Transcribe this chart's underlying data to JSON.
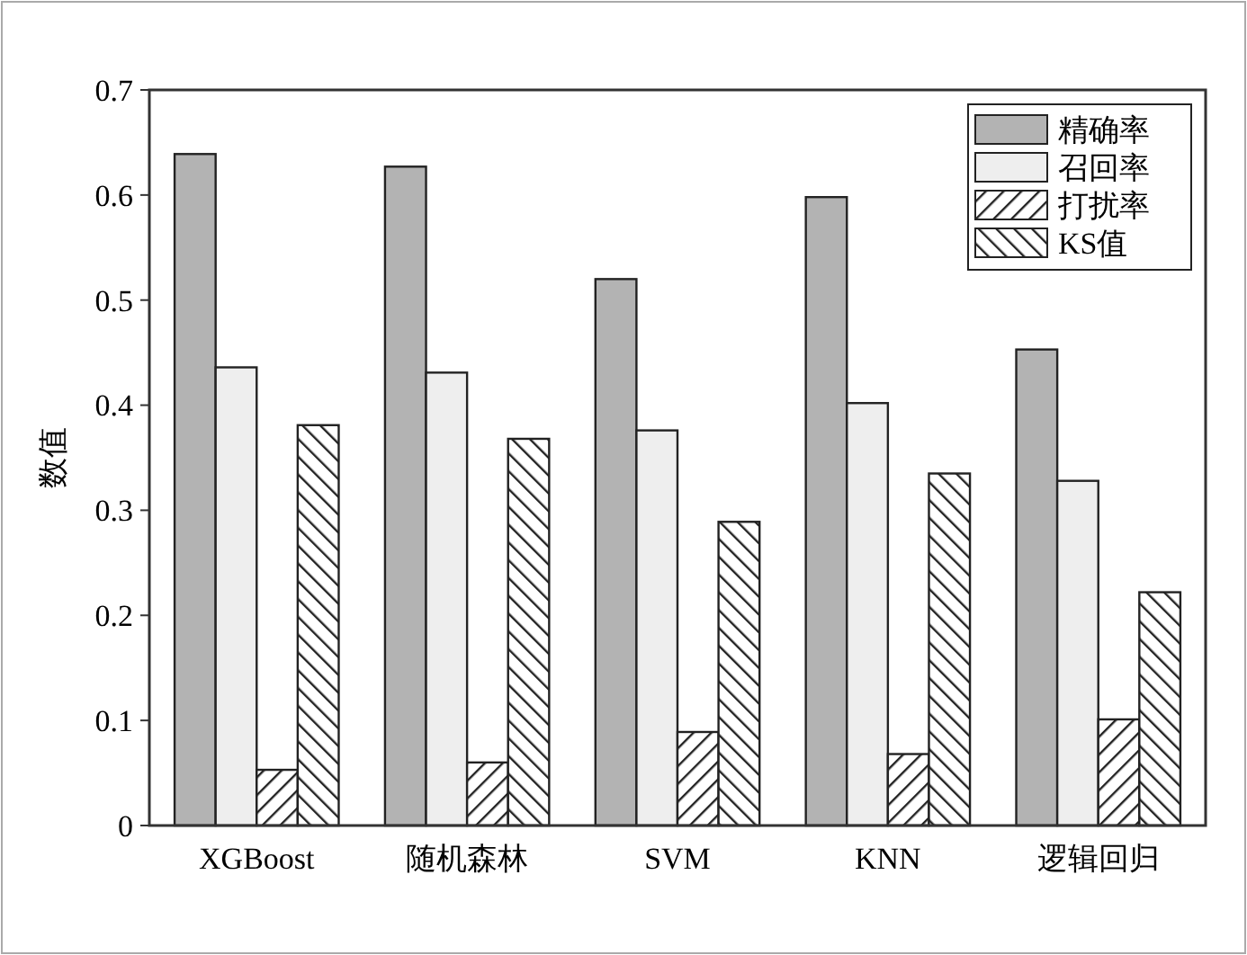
{
  "chart_data": {
    "type": "bar",
    "ylabel": "数值",
    "categories": [
      "XGBoost",
      "随机森林",
      "SVM",
      "KNN",
      "逻辑回归"
    ],
    "series": [
      {
        "name": "精确率",
        "color": "#b3b3b3",
        "values": [
          0.639,
          0.627,
          0.52,
          0.598,
          0.453
        ]
      },
      {
        "name": "召回率",
        "color": "#eeeeee",
        "values": [
          0.436,
          0.431,
          0.376,
          0.402,
          0.328
        ]
      },
      {
        "name": "打扰率",
        "color": "#222222",
        "values": [
          0.053,
          0.06,
          0.089,
          0.068,
          0.101
        ]
      },
      {
        "name": "KS值",
        "color": "#222222",
        "values": [
          0.381,
          0.368,
          0.289,
          0.335,
          0.222
        ]
      }
    ],
    "ylim": [
      0,
      0.7
    ],
    "yticks": [
      0,
      0.1,
      0.2,
      0.3,
      0.4,
      0.5,
      0.6,
      0.7
    ],
    "legend": "top right"
  }
}
